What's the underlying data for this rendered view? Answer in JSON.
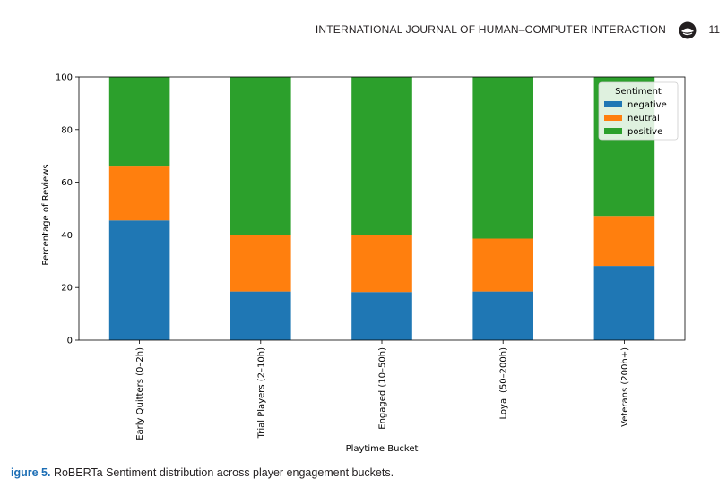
{
  "header": {
    "journal": "INTERNATIONAL JOURNAL OF HUMAN–COMPUTER INTERACTION",
    "page": "11"
  },
  "caption": {
    "label": "igure 5.",
    "text": " RoBERTa Sentiment distribution across player engagement buckets."
  },
  "colors": {
    "negative": "#1f77b4",
    "neutral": "#ff7f0e",
    "positive": "#2ca02c"
  },
  "chart_data": {
    "type": "bar",
    "stacked": true,
    "categories": [
      "Early Quitters (0–2h)",
      "Trial Players (2–10h)",
      "Engaged (10–50h)",
      "Loyal (50–200h)",
      "Veterans (200h+)"
    ],
    "series": [
      {
        "name": "negative",
        "values": [
          45.5,
          18.5,
          18.3,
          18.5,
          28.2
        ]
      },
      {
        "name": "neutral",
        "values": [
          20.8,
          21.5,
          21.7,
          20.1,
          19.0
        ]
      },
      {
        "name": "positive",
        "values": [
          33.7,
          60.0,
          60.0,
          61.4,
          52.8
        ]
      }
    ],
    "xlabel": "Playtime Bucket",
    "ylabel": "Percentage of Reviews",
    "ylim": [
      0,
      100
    ],
    "yticks": [
      0,
      20,
      40,
      60,
      80,
      100
    ],
    "grid": false,
    "legend": {
      "title": "Sentiment",
      "position": "top-right"
    }
  }
}
